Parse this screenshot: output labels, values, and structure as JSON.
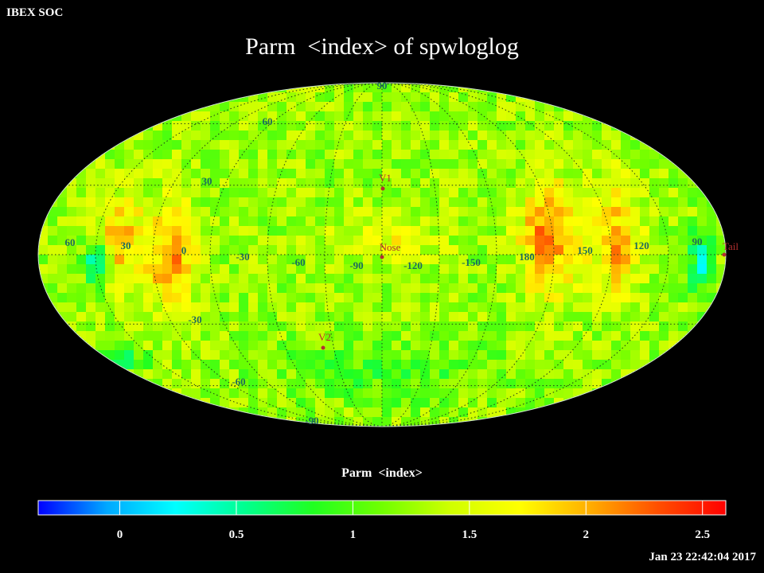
{
  "header": {
    "org": "IBEX SOC",
    "title": "Parm  <index> of spwloglog"
  },
  "map": {
    "projection": "mollweide",
    "graticule": {
      "lat_step_deg": 30,
      "lon_step_deg": 30,
      "style": "dotted"
    },
    "lat_labels": [
      "90",
      "60",
      "30",
      "0",
      "-30",
      "-60",
      "-90"
    ],
    "lon_labels": [
      "60",
      "30",
      "0",
      "-30",
      "-60",
      "-90",
      "-120",
      "-150",
      "180",
      "150",
      "120",
      "90"
    ],
    "markers": [
      {
        "label": "V1"
      },
      {
        "label": "Nose"
      },
      {
        "label": "V2"
      },
      {
        "label": "Tail"
      }
    ],
    "marker_color": "#b33030",
    "label_color": "#1d6b5e"
  },
  "colorbar": {
    "title": "Parm  <index>",
    "range": [
      -0.35,
      2.6
    ],
    "ticks": [
      "0",
      "0.5",
      "1",
      "1.5",
      "2",
      "2.5"
    ],
    "tick_values": [
      0,
      0.5,
      1,
      1.5,
      2,
      2.5
    ],
    "colors": [
      "#0000ff",
      "#00a8ff",
      "#00ffff",
      "#00ff90",
      "#20ff20",
      "#70ff00",
      "#d0ff00",
      "#ffff00",
      "#ffb000",
      "#ff5000",
      "#ff0000"
    ]
  },
  "footer": {
    "timestamp": "Jan 23 22:42:04 2017"
  }
}
